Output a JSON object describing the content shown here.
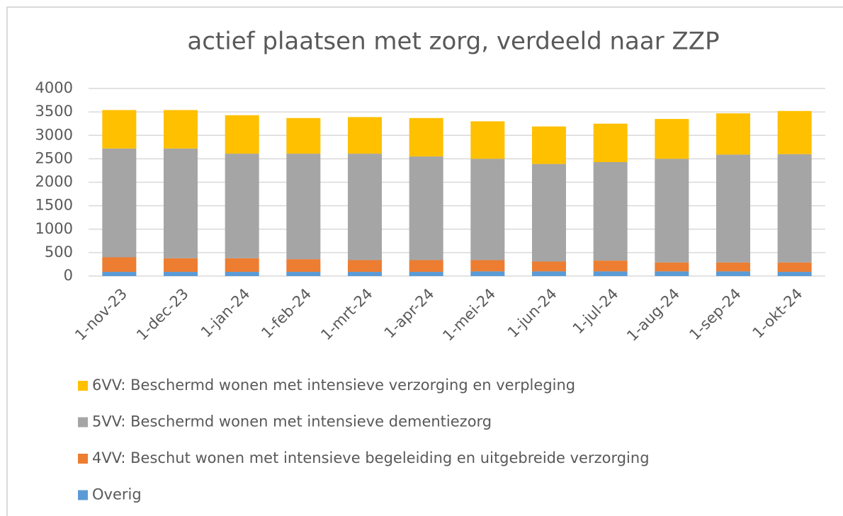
{
  "chart_data": {
    "type": "stacked_bar",
    "title": "actief plaatsen met zorg, verdeeld naar ZZP",
    "categories": [
      "1-nov-23",
      "1-dec-23",
      "1-jan-24",
      "1-feb-24",
      "1-mrt-24",
      "1-apr-24",
      "1-mei-24",
      "1-jun-24",
      "1-jul-24",
      "1-aug-24",
      "1-sep-24",
      "1-okt-24"
    ],
    "series": [
      {
        "name": "Overig",
        "color": "#5b9bd5",
        "values": [
          90,
          90,
          90,
          90,
          90,
          90,
          100,
          100,
          100,
          100,
          100,
          90
        ]
      },
      {
        "name": "4VV: Beschut wonen met intensieve begeleiding en uitgebreide verzorging",
        "color": "#ed7d31",
        "values": [
          310,
          290,
          290,
          270,
          250,
          250,
          240,
          210,
          230,
          190,
          190,
          200
        ]
      },
      {
        "name": "5VV: Beschermd wonen met intensieve dementiezorg",
        "color": "#a5a5a5",
        "values": [
          2320,
          2340,
          2230,
          2250,
          2270,
          2210,
          2160,
          2080,
          2100,
          2210,
          2300,
          2310
        ]
      },
      {
        "name": "6VV: Beschermd wonen met intensieve verzorging en verpleging",
        "color": "#ffc000",
        "values": [
          820,
          820,
          820,
          760,
          780,
          820,
          800,
          800,
          820,
          850,
          880,
          920
        ]
      }
    ],
    "ylim": [
      0,
      4000
    ],
    "yticks": [
      0,
      500,
      1000,
      1500,
      2000,
      2500,
      3000,
      3500,
      4000
    ],
    "grid": true,
    "legend": "bottom"
  }
}
